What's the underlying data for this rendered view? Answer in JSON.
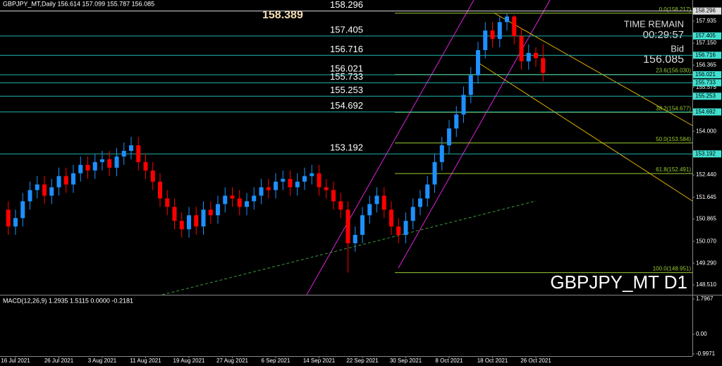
{
  "chart_data": {
    "type": "candlestick",
    "title": "GBPJPY_MT,Daily  156.614 157.099 155.787 156.085",
    "symbol_label": "GBPJPY_MT D1",
    "categories": [
      null,
      "16 Jul 2021",
      null,
      null,
      null,
      null,
      null,
      "26 Jul 2021",
      null,
      null,
      null,
      null,
      null,
      "3 Aug 2021",
      null,
      null,
      null,
      null,
      null,
      "11 Aug 2021",
      null,
      null,
      null,
      null,
      null,
      "19 Aug 2021",
      null,
      null,
      null,
      null,
      null,
      "27 Aug 2021",
      null,
      null,
      null,
      null,
      null,
      "6 Sep 2021",
      null,
      null,
      null,
      null,
      null,
      "14 Sep 2021",
      null,
      null,
      null,
      null,
      null,
      "22 Sep 2021",
      null,
      null,
      null,
      null,
      null,
      "30 Sep 2021",
      null,
      null,
      null,
      null,
      null,
      "8 Oct 2021",
      null,
      null,
      null,
      null,
      null,
      "18 Oct 2021",
      null,
      null,
      null,
      null,
      null,
      "26 Oct 2021",
      null
    ],
    "open": [
      151.2,
      150.6,
      150.9,
      151.5,
      151.9,
      152.1,
      151.7,
      152.0,
      152.4,
      152.1,
      152.5,
      152.8,
      152.6,
      152.9,
      153.0,
      152.7,
      153.1,
      153.3,
      153.5,
      152.9,
      152.6,
      152.2,
      151.6,
      151.3,
      150.8,
      150.5,
      151.0,
      150.6,
      151.2,
      151.0,
      151.4,
      151.7,
      151.6,
      151.3,
      151.5,
      151.7,
      152.0,
      151.9,
      152.2,
      152.3,
      152.0,
      152.2,
      152.4,
      152.5,
      152.0,
      151.9,
      151.5,
      151.2,
      150.0,
      150.3,
      151.0,
      151.4,
      151.7,
      151.2,
      150.6,
      150.3,
      150.8,
      151.3,
      151.6,
      152.1,
      152.9,
      153.5,
      154.1,
      154.6,
      155.3,
      156.0,
      156.9,
      157.6,
      157.3,
      157.9,
      158.1,
      157.4,
      156.5,
      156.8,
      156.614
    ],
    "high": [
      151.5,
      151.2,
      151.8,
      152.2,
      152.4,
      152.4,
      152.3,
      152.7,
      152.7,
      152.8,
      153.1,
      153.1,
      153.2,
      153.3,
      153.3,
      153.4,
      153.6,
      153.8,
      153.8,
      153.2,
      152.9,
      152.5,
      151.9,
      151.6,
      151.1,
      151.3,
      151.3,
      151.5,
      151.5,
      151.7,
      152.0,
      152.0,
      151.9,
      151.8,
      152.0,
      152.3,
      152.3,
      152.5,
      152.6,
      152.6,
      152.5,
      152.7,
      152.8,
      152.8,
      152.3,
      152.2,
      151.8,
      151.5,
      150.6,
      151.3,
      151.7,
      152.0,
      152.0,
      151.5,
      150.9,
      151.1,
      151.6,
      151.9,
      152.4,
      153.2,
      153.8,
      154.4,
      154.9,
      155.6,
      156.3,
      157.2,
      157.9,
      157.9,
      158.1,
      158.217,
      158.15,
      157.7,
      157.1,
      157.0,
      157.099
    ],
    "low": [
      150.3,
      150.3,
      150.6,
      151.2,
      151.6,
      151.4,
      151.4,
      151.7,
      151.8,
      151.8,
      152.2,
      152.3,
      152.3,
      152.6,
      152.4,
      152.4,
      152.8,
      153.0,
      152.6,
      152.3,
      151.9,
      151.3,
      151.0,
      150.5,
      150.2,
      150.2,
      150.3,
      150.3,
      150.7,
      150.7,
      151.1,
      151.3,
      151.0,
      151.0,
      151.2,
      151.4,
      151.6,
      151.6,
      151.9,
      151.7,
      151.7,
      151.9,
      152.1,
      151.7,
      151.6,
      151.2,
      150.9,
      148.951,
      149.7,
      150.0,
      150.7,
      151.1,
      150.9,
      150.3,
      150.0,
      150.0,
      150.5,
      151.0,
      151.3,
      151.8,
      152.6,
      153.2,
      153.8,
      154.3,
      155.0,
      155.7,
      156.6,
      157.0,
      157.0,
      157.6,
      157.1,
      156.2,
      156.2,
      156.3,
      155.787
    ],
    "close": [
      150.6,
      150.9,
      151.5,
      151.9,
      152.1,
      151.7,
      152.0,
      152.4,
      152.1,
      152.5,
      152.8,
      152.6,
      152.9,
      153.0,
      152.7,
      153.1,
      153.3,
      153.5,
      152.9,
      152.6,
      152.2,
      151.6,
      151.3,
      150.8,
      150.5,
      151.0,
      150.6,
      151.2,
      151.0,
      151.4,
      151.7,
      151.6,
      151.3,
      151.5,
      151.7,
      152.0,
      151.9,
      152.2,
      152.3,
      152.0,
      152.2,
      152.4,
      152.5,
      152.0,
      151.9,
      151.5,
      151.2,
      150.0,
      150.3,
      151.0,
      151.4,
      151.7,
      151.2,
      150.6,
      150.3,
      150.8,
      151.3,
      151.6,
      152.1,
      152.9,
      153.5,
      154.1,
      154.6,
      155.3,
      156.0,
      156.9,
      157.6,
      157.3,
      157.9,
      158.1,
      157.4,
      156.5,
      156.8,
      156.614,
      156.085
    ],
    "up_color": "#1e90ff",
    "down_color": "#ff0000",
    "ylim": [
      148.16,
      158.69
    ],
    "yticks": [
      157.935,
      {
        "value": 157.15,
        "label": "157.150"
      },
      156.365,
      155.575,
      {
        "value": 154,
        "label": "154.000"
      },
      {
        "value": 152.44,
        "label": "152.440"
      },
      151.645,
      150.865,
      {
        "value": 150.07,
        "label": "150.070"
      },
      {
        "value": 149.29,
        "label": "149.290"
      },
      {
        "value": 148.51,
        "label": "148.510"
      }
    ],
    "levels": [
      158.296,
      157.405,
      156.716,
      156.021,
      155.733,
      155.253,
      154.692,
      153.192
    ],
    "level_color": "#20b2aa",
    "fib_levels": [
      {
        "value": 158.217,
        "label": "0.0(158.217)"
      },
      {
        "value": 156.03,
        "label": "23.6(156.030)"
      },
      {
        "value": 154.677,
        "label": "38.2(154.677)"
      },
      {
        "value": 153.584,
        "label": "50.0(153.584)"
      },
      {
        "value": 152.491,
        "label": "61.8(152.491)"
      },
      {
        "value": 148.951,
        "label": "100.0(148.951)"
      }
    ],
    "fib_color": "#9acd32",
    "annotations": {
      "high": "158.389",
      "time_remain": "TIME REMAIN",
      "countdown": "00:29:57",
      "bid_label": "Bid",
      "bid": 156.085
    },
    "macd": {
      "title": "MACD(12,26,9) 1.2935 1.5115 0.0000 -0.2181",
      "ylim": [
        -1.11,
        1.94
      ],
      "yticks": [
        1.7967,
        {
          "value": 0,
          "label": "0.00"
        },
        -0.9971
      ]
    }
  }
}
